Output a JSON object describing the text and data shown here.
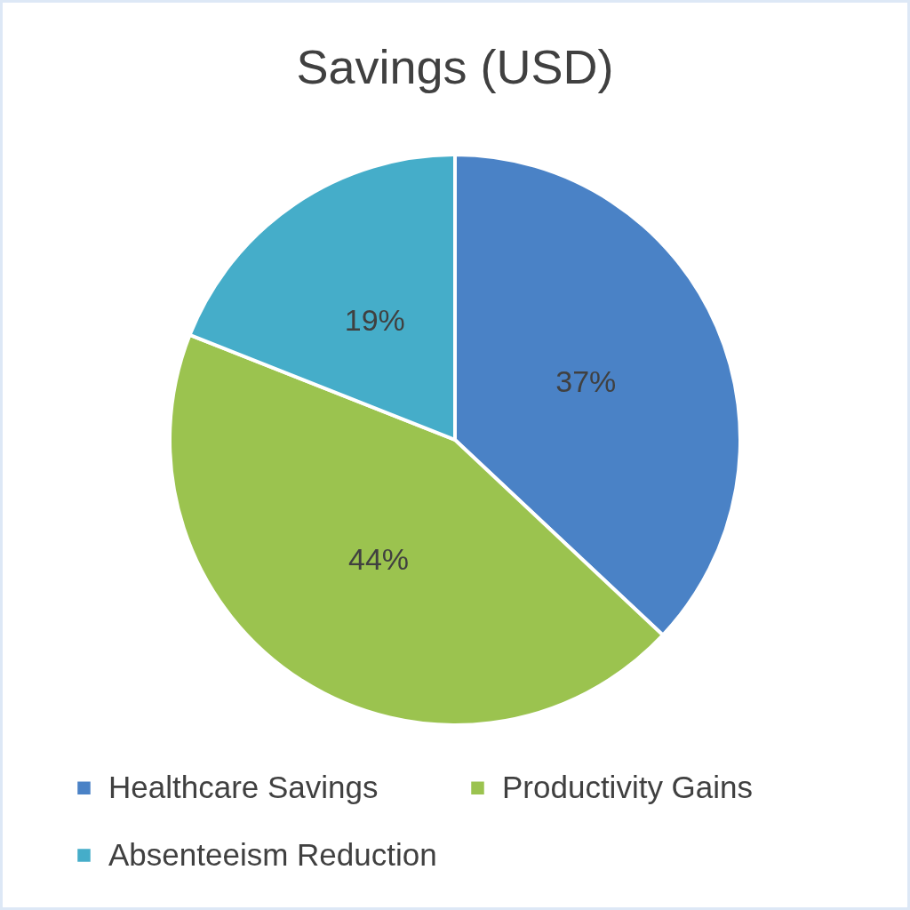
{
  "chart_data": {
    "type": "pie",
    "title": "Savings (USD)",
    "categories": [
      "Healthcare Savings",
      "Productivity Gains",
      "Absenteeism Reduction"
    ],
    "values": [
      37,
      44,
      19
    ],
    "colors": [
      "#4a82c6",
      "#9bc34f",
      "#45adc9"
    ],
    "value_labels": [
      "37%",
      "44%",
      "19%"
    ],
    "legend": "bottom"
  }
}
